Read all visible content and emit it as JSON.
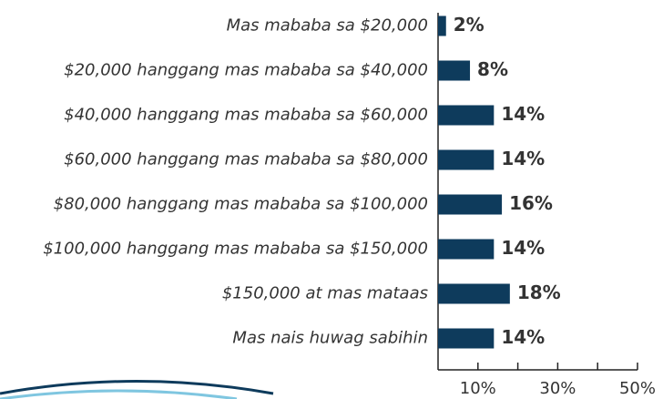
{
  "chart_data": {
    "type": "bar",
    "orientation": "horizontal",
    "categories": [
      "Mas mababa sa $20,000",
      "$20,000 hanggang mas mababa sa $40,000",
      "$40,000 hanggang mas mababa sa $60,000",
      "$60,000 hanggang mas mababa sa $80,000",
      "$80,000 hanggang mas mababa sa $100,000",
      "$100,000 hanggang mas mababa sa $150,000",
      "$150,000 at mas mataas",
      "Mas nais huwag sabihin"
    ],
    "values": [
      2,
      8,
      14,
      14,
      16,
      14,
      18,
      14
    ],
    "value_labels": [
      "2%",
      "8%",
      "14%",
      "14%",
      "16%",
      "14%",
      "18%",
      "14%"
    ],
    "color": "#0e3b5c",
    "xlim": [
      0,
      50
    ],
    "xticks": [
      {
        "value": 10,
        "label": "10%"
      },
      {
        "value": 30,
        "label": "30%"
      },
      {
        "value": 50,
        "label": "50%"
      }
    ],
    "xminorticks": [
      20,
      40
    ]
  }
}
